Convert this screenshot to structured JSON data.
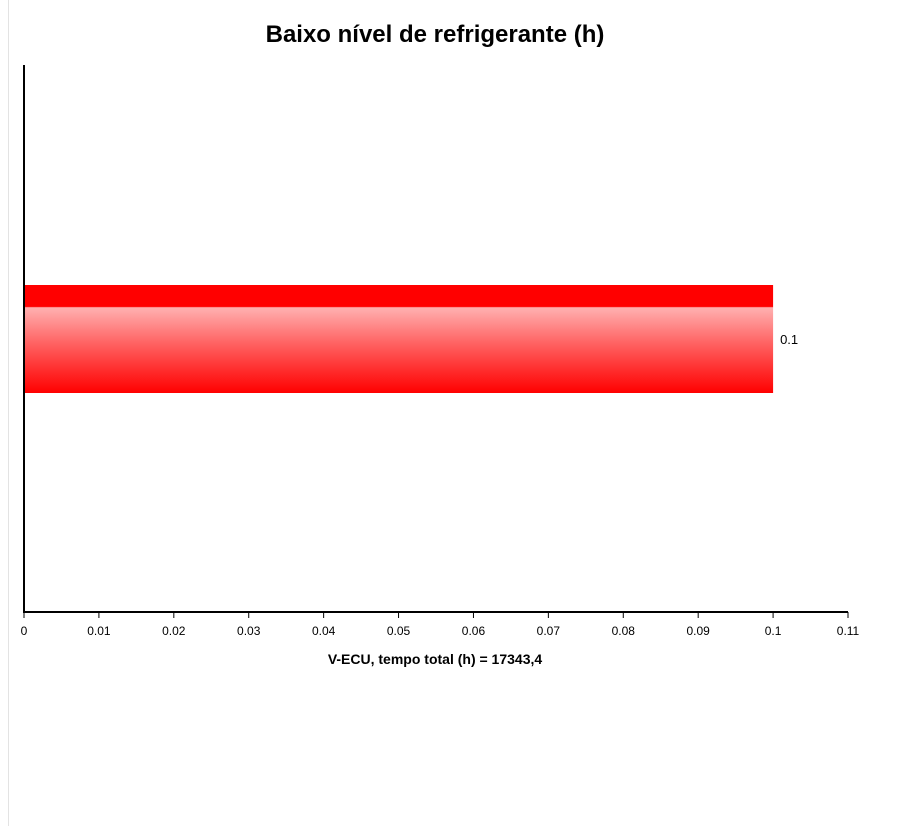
{
  "chart_data": {
    "type": "bar",
    "orientation": "horizontal",
    "title": "Baixo nível de refrigerante (h)",
    "xlabel": "V-ECU, tempo total (h) = 17343,4",
    "ylabel": "",
    "categories": [
      ""
    ],
    "values": [
      0.1
    ],
    "data_labels": [
      "0.1"
    ],
    "xlim": [
      0,
      0.11
    ],
    "x_ticks": [
      0,
      0.01,
      0.02,
      0.03,
      0.04,
      0.05,
      0.06,
      0.07,
      0.08,
      0.09,
      0.1,
      0.11
    ],
    "x_tick_labels": [
      "0",
      "0.01",
      "0.02",
      "0.03",
      "0.04",
      "0.05",
      "0.06",
      "0.07",
      "0.08",
      "0.09",
      "0.1",
      "0.11"
    ],
    "grid": false,
    "legend": "none",
    "bar_color": "#ff0000",
    "bar_highlight_color": "#ffaaaa"
  }
}
